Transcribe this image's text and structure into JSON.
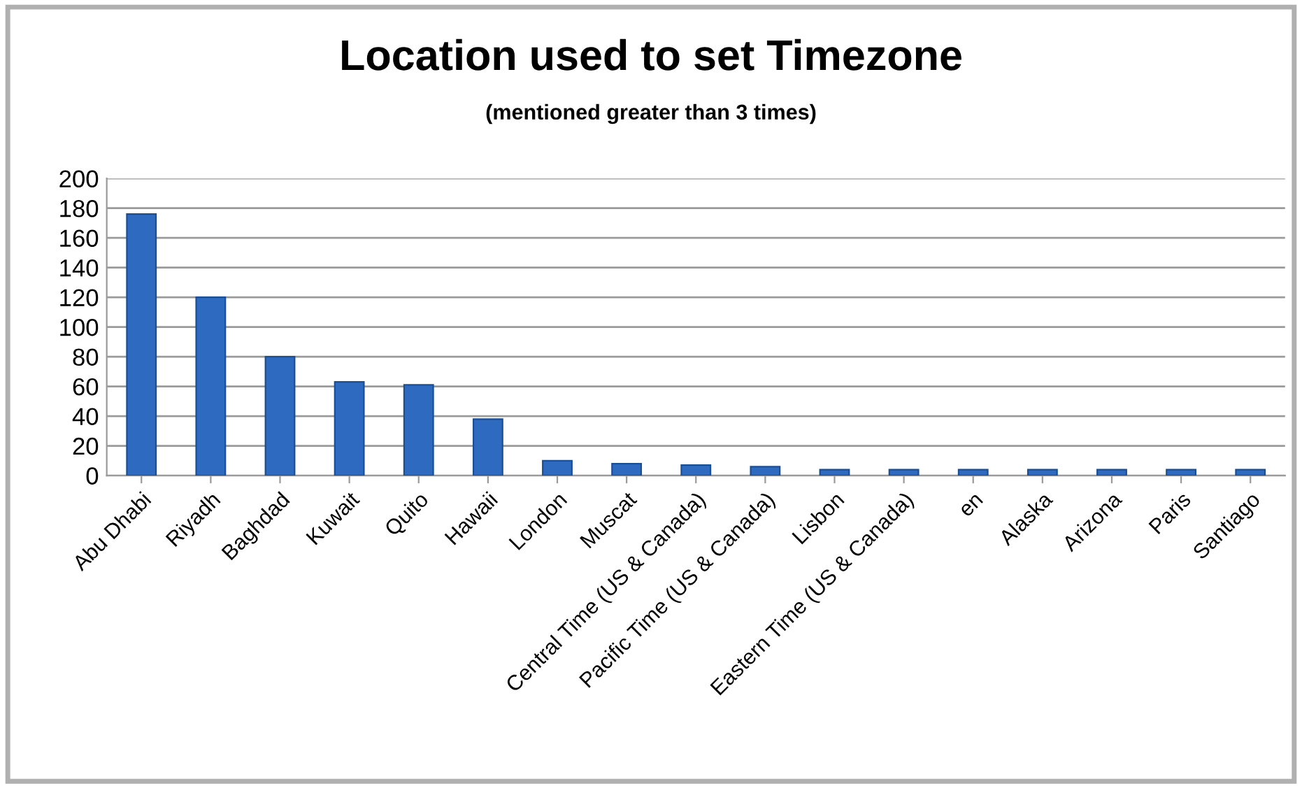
{
  "chart_data": {
    "type": "bar",
    "title": "Location used to set Timezone",
    "subtitle": "(mentioned greater than 3 times)",
    "categories": [
      "Abu Dhabi",
      "Riyadh",
      "Baghdad",
      "Kuwait",
      "Quito",
      "Hawaii",
      "London",
      "Muscat",
      "Central Time (US & Canada)",
      "Pacific Time (US & Canada)",
      "Lisbon",
      "Eastern Time (US & Canada)",
      "en",
      "Alaska",
      "Arizona",
      "Paris",
      "Santiago"
    ],
    "values": [
      176,
      120,
      80,
      63,
      61,
      38,
      10,
      8,
      7,
      6,
      4,
      4,
      4,
      4,
      4,
      4,
      4
    ],
    "color": "#2e6bc0",
    "ylim": [
      0,
      200
    ],
    "yticks": [
      0,
      20,
      40,
      60,
      80,
      100,
      120,
      140,
      160,
      180,
      200
    ],
    "grid": "y",
    "legend": false
  }
}
